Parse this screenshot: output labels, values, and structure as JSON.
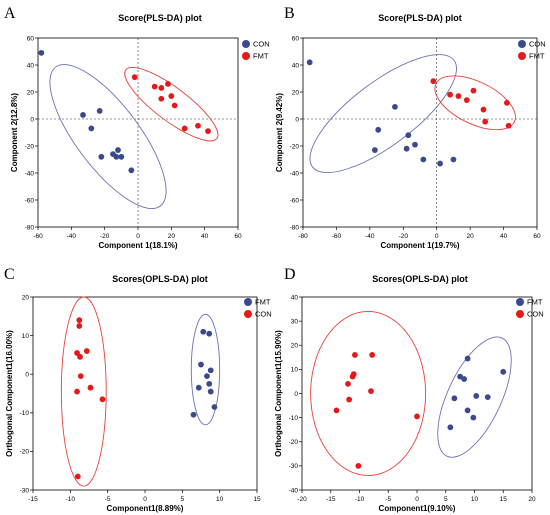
{
  "colors": {
    "blue": "#3b4a8c",
    "red": "#e31a1c",
    "blue_ellipse": "#6a72b8",
    "red_ellipse": "#e8413a"
  },
  "chart_data": [
    {
      "panel": "A",
      "type": "scatter",
      "title": "Score(PLS-DA) plot",
      "xlabel": "Component 1(18.1%)",
      "ylabel": "Component 2(12.8%)",
      "xlim": [
        -60,
        60
      ],
      "ylim": [
        -80,
        60
      ],
      "xticks": [
        -60,
        -40,
        -20,
        0,
        20,
        40,
        60
      ],
      "yticks": [
        -80,
        -60,
        -40,
        -20,
        0,
        20,
        40,
        60
      ],
      "origin_lines": true,
      "legend_position": "top-right",
      "series": [
        {
          "name": "CON",
          "color": "#3b4a8c",
          "points": [
            [
              -58,
              49
            ],
            [
              -33,
              3
            ],
            [
              -23,
              6
            ],
            [
              -28,
              -7
            ],
            [
              -22,
              -28
            ],
            [
              -15,
              -26
            ],
            [
              -12,
              -23
            ],
            [
              -13,
              -28
            ],
            [
              -10,
              -28
            ],
            [
              -4,
              -38
            ]
          ],
          "ellipse": {
            "cx": -18,
            "cy": -13,
            "rx": 58,
            "ry": 21,
            "angle_deg": -53
          }
        },
        {
          "name": "FMT",
          "color": "#e31a1c",
          "points": [
            [
              -2,
              31
            ],
            [
              10,
              24
            ],
            [
              14,
              23
            ],
            [
              18,
              26
            ],
            [
              20,
              17
            ],
            [
              14,
              15
            ],
            [
              22,
              10
            ],
            [
              28,
              -7
            ],
            [
              36,
              -5
            ],
            [
              42,
              -9
            ]
          ],
          "ellipse": {
            "cx": 20,
            "cy": 11,
            "rx": 38,
            "ry": 11,
            "angle_deg": -37
          }
        }
      ]
    },
    {
      "panel": "B",
      "type": "scatter",
      "title": "Score(PLS-DA) plot",
      "xlabel": "Component 1(19.7%)",
      "ylabel": "Component 2(9.42%)",
      "xlim": [
        -80,
        60
      ],
      "ylim": [
        -80,
        60
      ],
      "xticks": [
        -80,
        -60,
        -40,
        -20,
        0,
        20,
        40,
        60
      ],
      "yticks": [
        -80,
        -60,
        -40,
        -20,
        0,
        20,
        40,
        60
      ],
      "origin_lines": true,
      "legend_position": "top-right",
      "series": [
        {
          "name": "CON",
          "color": "#3b4a8c",
          "points": [
            [
              -76,
              42
            ],
            [
              -25,
              9
            ],
            [
              -35,
              -8
            ],
            [
              -17,
              -12
            ],
            [
              -37,
              -23
            ],
            [
              -18,
              -22
            ],
            [
              -13,
              -19
            ],
            [
              -8,
              -30
            ],
            [
              2,
              -33
            ],
            [
              10,
              -30
            ]
          ],
          "ellipse": {
            "cx": -32,
            "cy": 4,
            "rx": 59,
            "ry": 21,
            "angle_deg": 37
          }
        },
        {
          "name": "FMT",
          "color": "#e31a1c",
          "points": [
            [
              -2,
              28
            ],
            [
              8,
              18
            ],
            [
              13,
              17
            ],
            [
              18,
              14
            ],
            [
              22,
              21
            ],
            [
              28,
              7
            ],
            [
              42,
              12
            ],
            [
              29,
              -2
            ],
            [
              43,
              -5
            ]
          ],
          "ellipse": {
            "cx": 23,
            "cy": 12,
            "rx": 29,
            "ry": 14,
            "angle_deg": -26
          }
        }
      ]
    },
    {
      "panel": "C",
      "type": "scatter",
      "title": "Scores(OPLS-DA) plot",
      "xlabel": "Component1(8.89%)",
      "ylabel": "Orthogonal Component1(16.00%)",
      "xlim": [
        -15,
        15
      ],
      "ylim": [
        -30,
        20
      ],
      "xticks": [
        -15,
        -10,
        -5,
        0,
        5,
        10,
        15
      ],
      "yticks": [
        -30,
        -20,
        -10,
        0,
        10,
        20
      ],
      "origin_lines": false,
      "legend_position": "top-right",
      "series": [
        {
          "name": "FMT",
          "color": "#3b4a8c",
          "points": [
            [
              7.8,
              11
            ],
            [
              8.6,
              10.5
            ],
            [
              7.5,
              2.5
            ],
            [
              8.8,
              1
            ],
            [
              8.3,
              -0.5
            ],
            [
              8.6,
              -2.5
            ],
            [
              7.2,
              -3.5
            ],
            [
              8.8,
              -4.5
            ],
            [
              9.3,
              -8.5
            ],
            [
              6.5,
              -10.5
            ]
          ],
          "ellipse": {
            "cx": 8.1,
            "cy": 1.2,
            "rx": 1.9,
            "ry": 14.3,
            "angle_deg": 0
          }
        },
        {
          "name": "CON",
          "color": "#e31a1c",
          "points": [
            [
              -8.8,
              14
            ],
            [
              -8.8,
              12.5
            ],
            [
              -9.1,
              5.5
            ],
            [
              -8.7,
              4.5
            ],
            [
              -7.8,
              6
            ],
            [
              -8.6,
              -0.5
            ],
            [
              -7.3,
              -3.5
            ],
            [
              -9.1,
              -4.5
            ],
            [
              -5.7,
              -6.5
            ],
            [
              -9.0,
              -26.5
            ]
          ],
          "ellipse": {
            "cx": -8.2,
            "cy": -4.5,
            "rx": 3.0,
            "ry": 24.5,
            "angle_deg": 0
          }
        }
      ]
    },
    {
      "panel": "D",
      "type": "scatter",
      "title": "Scores(OPLS-DA) plot",
      "xlabel": "Component1(9.10%)",
      "ylabel": "Orthogonal Component1(15.90%)",
      "xlim": [
        -20,
        20
      ],
      "ylim": [
        -40,
        40
      ],
      "xticks": [
        -20,
        -15,
        -10,
        -5,
        0,
        5,
        10,
        15,
        20
      ],
      "yticks": [
        -40,
        -30,
        -20,
        -10,
        0,
        10,
        20,
        30,
        40
      ],
      "origin_lines": false,
      "legend_position": "top-right",
      "series": [
        {
          "name": "FMT",
          "color": "#3b4a8c",
          "points": [
            [
              8.8,
              14.5
            ],
            [
              7.5,
              7
            ],
            [
              8.2,
              6
            ],
            [
              15,
              9
            ],
            [
              6.5,
              -2
            ],
            [
              10.3,
              -1
            ],
            [
              12.3,
              -1.5
            ],
            [
              8.8,
              -7
            ],
            [
              9.8,
              -10
            ],
            [
              5.8,
              -14
            ]
          ],
          "ellipse": {
            "cx": 10,
            "cy": -1.5,
            "rx": 7.2,
            "ry": 17.5,
            "angle_deg": -25
          }
        },
        {
          "name": "CON",
          "color": "#e31a1c",
          "points": [
            [
              -10.8,
              16
            ],
            [
              -7.8,
              16
            ],
            [
              -11,
              8
            ],
            [
              -11.2,
              7
            ],
            [
              -12,
              4
            ],
            [
              -8,
              1
            ],
            [
              -11.8,
              -2.5
            ],
            [
              -14,
              -7
            ],
            [
              0,
              -9.5
            ],
            [
              -10.2,
              -30
            ]
          ],
          "ellipse": {
            "cx": -8.5,
            "cy": 0,
            "rx": 10,
            "ry": 34,
            "angle_deg": 0
          }
        }
      ]
    }
  ]
}
